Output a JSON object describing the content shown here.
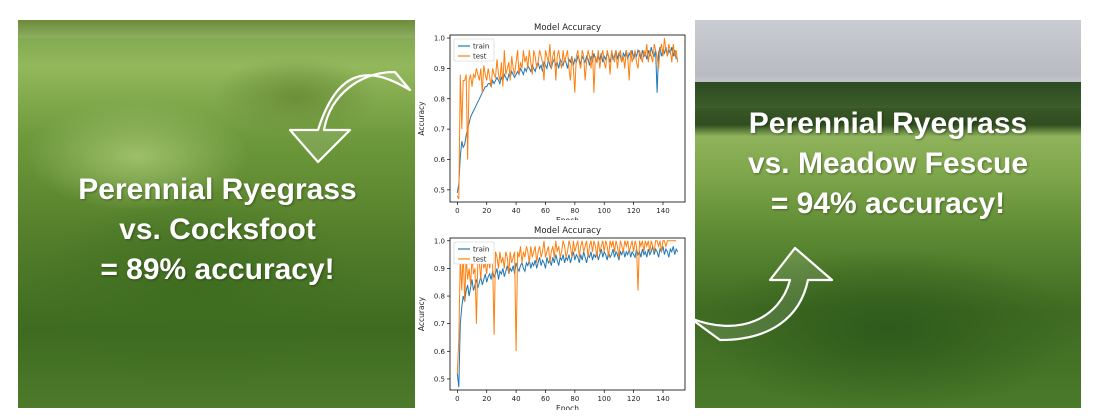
{
  "left_caption": [
    "Perennial Ryegrass",
    "vs. Cocksfoot",
    "= 89% accuracy!"
  ],
  "right_caption": [
    "Perennial Ryegrass",
    "vs. Meadow Fescue",
    "= 94% accuracy!"
  ],
  "colors": {
    "train": "#1f77b4",
    "test": "#ff7f0e",
    "caption": "#ffffff"
  },
  "chart_data": [
    {
      "type": "line",
      "title": "Model Accuracy",
      "xlabel": "Epoch",
      "ylabel": "Accuracy",
      "xlim": [
        -5,
        155
      ],
      "ylim": [
        0.46,
        1.01
      ],
      "xticks": [
        0,
        20,
        40,
        60,
        80,
        100,
        120,
        140
      ],
      "yticks": [
        0.5,
        0.6,
        0.7,
        0.8,
        0.9,
        1.0
      ],
      "ytick_labels": [
        "0.5",
        "0.6",
        "0.7",
        "0.8",
        "0.9",
        "1.0"
      ],
      "legend": "upper-left",
      "series": [
        {
          "name": "train",
          "color": "#1f77b4",
          "x_start": 0,
          "values": [
            0.49,
            0.52,
            0.61,
            0.66,
            0.64,
            0.65,
            0.68,
            0.7,
            0.72,
            0.74,
            0.75,
            0.76,
            0.77,
            0.78,
            0.79,
            0.8,
            0.81,
            0.82,
            0.83,
            0.84,
            0.84,
            0.85,
            0.85,
            0.84,
            0.86,
            0.85,
            0.86,
            0.87,
            0.86,
            0.85,
            0.87,
            0.86,
            0.88,
            0.87,
            0.86,
            0.88,
            0.87,
            0.89,
            0.88,
            0.87,
            0.88,
            0.89,
            0.88,
            0.9,
            0.89,
            0.88,
            0.9,
            0.89,
            0.91,
            0.9,
            0.89,
            0.91,
            0.9,
            0.89,
            0.91,
            0.92,
            0.9,
            0.91,
            0.89,
            0.92,
            0.91,
            0.9,
            0.93,
            0.91,
            0.9,
            0.92,
            0.93,
            0.91,
            0.92,
            0.9,
            0.93,
            0.92,
            0.91,
            0.93,
            0.92,
            0.9,
            0.93,
            0.92,
            0.94,
            0.91,
            0.93,
            0.92,
            0.94,
            0.93,
            0.91,
            0.94,
            0.93,
            0.92,
            0.94,
            0.93,
            0.91,
            0.94,
            0.92,
            0.95,
            0.93,
            0.92,
            0.94,
            0.93,
            0.95,
            0.92,
            0.94,
            0.93,
            0.95,
            0.94,
            0.92,
            0.95,
            0.93,
            0.94,
            0.96,
            0.93,
            0.95,
            0.94,
            0.92,
            0.95,
            0.94,
            0.96,
            0.93,
            0.95,
            0.94,
            0.96,
            0.93,
            0.95,
            0.94,
            0.96,
            0.95,
            0.93,
            0.96,
            0.94,
            0.95,
            0.93,
            0.96,
            0.94,
            0.97,
            0.95,
            0.94,
            0.96,
            0.82,
            0.95,
            0.97,
            0.94,
            0.96,
            0.95,
            0.97,
            0.94,
            0.96,
            0.95,
            0.97,
            0.94,
            0.96,
            0.93
          ]
        },
        {
          "name": "test",
          "color": "#ff7f0e",
          "x_start": 0,
          "values": [
            0.48,
            0.47,
            0.88,
            0.7,
            0.86,
            0.86,
            0.88,
            0.6,
            0.86,
            0.88,
            0.84,
            0.88,
            0.87,
            0.9,
            0.88,
            0.86,
            0.9,
            0.82,
            0.91,
            0.88,
            0.86,
            0.9,
            0.87,
            0.84,
            0.9,
            0.88,
            0.87,
            0.93,
            0.88,
            0.86,
            0.92,
            0.84,
            0.96,
            0.88,
            0.9,
            0.92,
            0.86,
            0.94,
            0.9,
            0.88,
            0.92,
            0.96,
            0.88,
            0.92,
            0.9,
            0.96,
            0.92,
            0.94,
            0.9,
            0.96,
            0.92,
            0.88,
            0.96,
            0.94,
            0.9,
            0.92,
            0.96,
            0.94,
            0.92,
            0.86,
            0.96,
            0.94,
            0.92,
            0.98,
            0.9,
            0.94,
            0.96,
            0.86,
            0.94,
            0.96,
            0.92,
            0.9,
            0.96,
            0.92,
            0.94,
            0.96,
            0.9,
            0.86,
            0.94,
            0.9,
            0.82,
            0.94,
            0.96,
            0.92,
            0.9,
            0.96,
            0.94,
            0.86,
            0.92,
            0.96,
            0.94,
            0.9,
            0.96,
            0.82,
            0.94,
            0.92,
            0.96,
            0.9,
            0.94,
            0.96,
            0.92,
            0.9,
            0.96,
            0.94,
            0.88,
            0.96,
            0.94,
            0.92,
            0.96,
            0.9,
            0.94,
            0.96,
            0.92,
            0.94,
            0.9,
            0.96,
            0.94,
            0.86,
            0.96,
            0.92,
            0.94,
            0.96,
            0.92,
            0.9,
            0.96,
            0.94,
            0.92,
            0.96,
            0.94,
            0.98,
            0.92,
            0.96,
            0.94,
            0.92,
            0.98,
            0.96,
            0.94,
            0.9,
            0.96,
            0.98,
            0.94,
            1.0,
            0.96,
            0.94,
            0.98,
            0.96,
            0.92,
            0.98,
            0.94,
            0.96,
            0.92
          ]
        }
      ]
    },
    {
      "type": "line",
      "title": "Model Accuracy",
      "xlabel": "Epoch",
      "ylabel": "Accuracy",
      "xlim": [
        -5,
        155
      ],
      "ylim": [
        0.46,
        1.01
      ],
      "xticks": [
        0,
        20,
        40,
        60,
        80,
        100,
        120,
        140
      ],
      "yticks": [
        0.5,
        0.6,
        0.7,
        0.8,
        0.9,
        1.0
      ],
      "ytick_labels": [
        "0.5",
        "0.6",
        "0.7",
        "0.8",
        "0.9",
        "1.0"
      ],
      "legend": "upper-left",
      "series": [
        {
          "name": "train",
          "color": "#1f77b4",
          "x_start": 0,
          "values": [
            0.52,
            0.47,
            0.7,
            0.76,
            0.8,
            0.78,
            0.82,
            0.84,
            0.8,
            0.83,
            0.86,
            0.82,
            0.84,
            0.86,
            0.83,
            0.85,
            0.87,
            0.84,
            0.86,
            0.88,
            0.85,
            0.87,
            0.88,
            0.86,
            0.89,
            0.87,
            0.88,
            0.9,
            0.86,
            0.89,
            0.88,
            0.9,
            0.87,
            0.89,
            0.91,
            0.88,
            0.9,
            0.89,
            0.91,
            0.88,
            0.92,
            0.9,
            0.89,
            0.91,
            0.92,
            0.9,
            0.89,
            0.92,
            0.91,
            0.93,
            0.9,
            0.92,
            0.91,
            0.93,
            0.9,
            0.92,
            0.94,
            0.91,
            0.93,
            0.92,
            0.9,
            0.94,
            0.92,
            0.93,
            0.91,
            0.94,
            0.92,
            0.95,
            0.93,
            0.91,
            0.94,
            0.93,
            0.95,
            0.92,
            0.94,
            0.93,
            0.95,
            0.92,
            0.94,
            0.96,
            0.93,
            0.95,
            0.94,
            0.92,
            0.95,
            0.93,
            0.96,
            0.94,
            0.92,
            0.95,
            0.94,
            0.96,
            0.93,
            0.95,
            0.94,
            0.96,
            0.93,
            0.95,
            0.97,
            0.94,
            0.96,
            0.95,
            0.93,
            0.96,
            0.94,
            0.95,
            0.97,
            0.94,
            0.96,
            0.95,
            0.93,
            0.96,
            0.95,
            0.97,
            0.94,
            0.96,
            0.95,
            0.97,
            0.94,
            0.96,
            0.95,
            0.94,
            0.97,
            0.95,
            0.96,
            0.94,
            0.97,
            0.95,
            0.96,
            0.94,
            0.97,
            0.95,
            0.96,
            0.98,
            0.95,
            0.97,
            0.96,
            0.94,
            0.97,
            0.96,
            0.98,
            0.95,
            0.97,
            0.96,
            0.94,
            0.97,
            0.96,
            0.98,
            0.95,
            0.97,
            0.96
          ]
        },
        {
          "name": "test",
          "color": "#ff7f0e",
          "x_start": 0,
          "values": [
            0.52,
            0.64,
            0.94,
            0.82,
            0.96,
            0.78,
            0.94,
            0.86,
            0.9,
            0.84,
            0.94,
            0.88,
            0.9,
            0.7,
            0.94,
            0.92,
            0.86,
            0.96,
            0.9,
            0.92,
            0.88,
            0.94,
            0.9,
            0.96,
            0.92,
            0.66,
            0.96,
            0.94,
            0.9,
            0.96,
            0.92,
            0.94,
            0.9,
            0.96,
            0.94,
            0.88,
            0.96,
            0.92,
            0.94,
            0.96,
            0.6,
            0.96,
            0.94,
            0.98,
            0.92,
            0.96,
            0.94,
            0.98,
            0.96,
            0.92,
            0.98,
            0.94,
            0.96,
            0.98,
            0.92,
            0.96,
            0.98,
            0.94,
            0.96,
            1.0,
            0.94,
            0.96,
            0.98,
            0.92,
            0.96,
            0.98,
            0.94,
            1.0,
            0.96,
            0.98,
            0.94,
            0.96,
            1.0,
            0.98,
            0.94,
            0.96,
            1.0,
            0.98,
            0.94,
            1.0,
            0.96,
            0.98,
            1.0,
            0.94,
            0.98,
            1.0,
            0.96,
            0.98,
            1.0,
            0.94,
            0.98,
            1.0,
            0.96,
            1.0,
            0.98,
            0.94,
            1.0,
            0.96,
            0.98,
            1.0,
            0.96,
            1.0,
            0.98,
            0.94,
            1.0,
            0.98,
            1.0,
            0.96,
            1.0,
            0.98,
            0.94,
            1.0,
            0.98,
            0.96,
            1.0,
            0.98,
            1.0,
            0.96,
            0.98,
            1.0,
            0.96,
            1.0,
            0.98,
            0.82,
            1.0,
            0.98,
            1.0,
            0.96,
            1.0,
            0.98,
            1.0,
            0.96,
            1.0,
            0.98,
            0.96,
            1.0,
            1.0,
            0.98,
            1.0,
            0.96,
            1.0,
            1.0,
            0.98,
            1.0,
            1.0,
            1.0,
            1.0,
            1.0,
            1.0,
            1.0
          ]
        }
      ]
    }
  ]
}
